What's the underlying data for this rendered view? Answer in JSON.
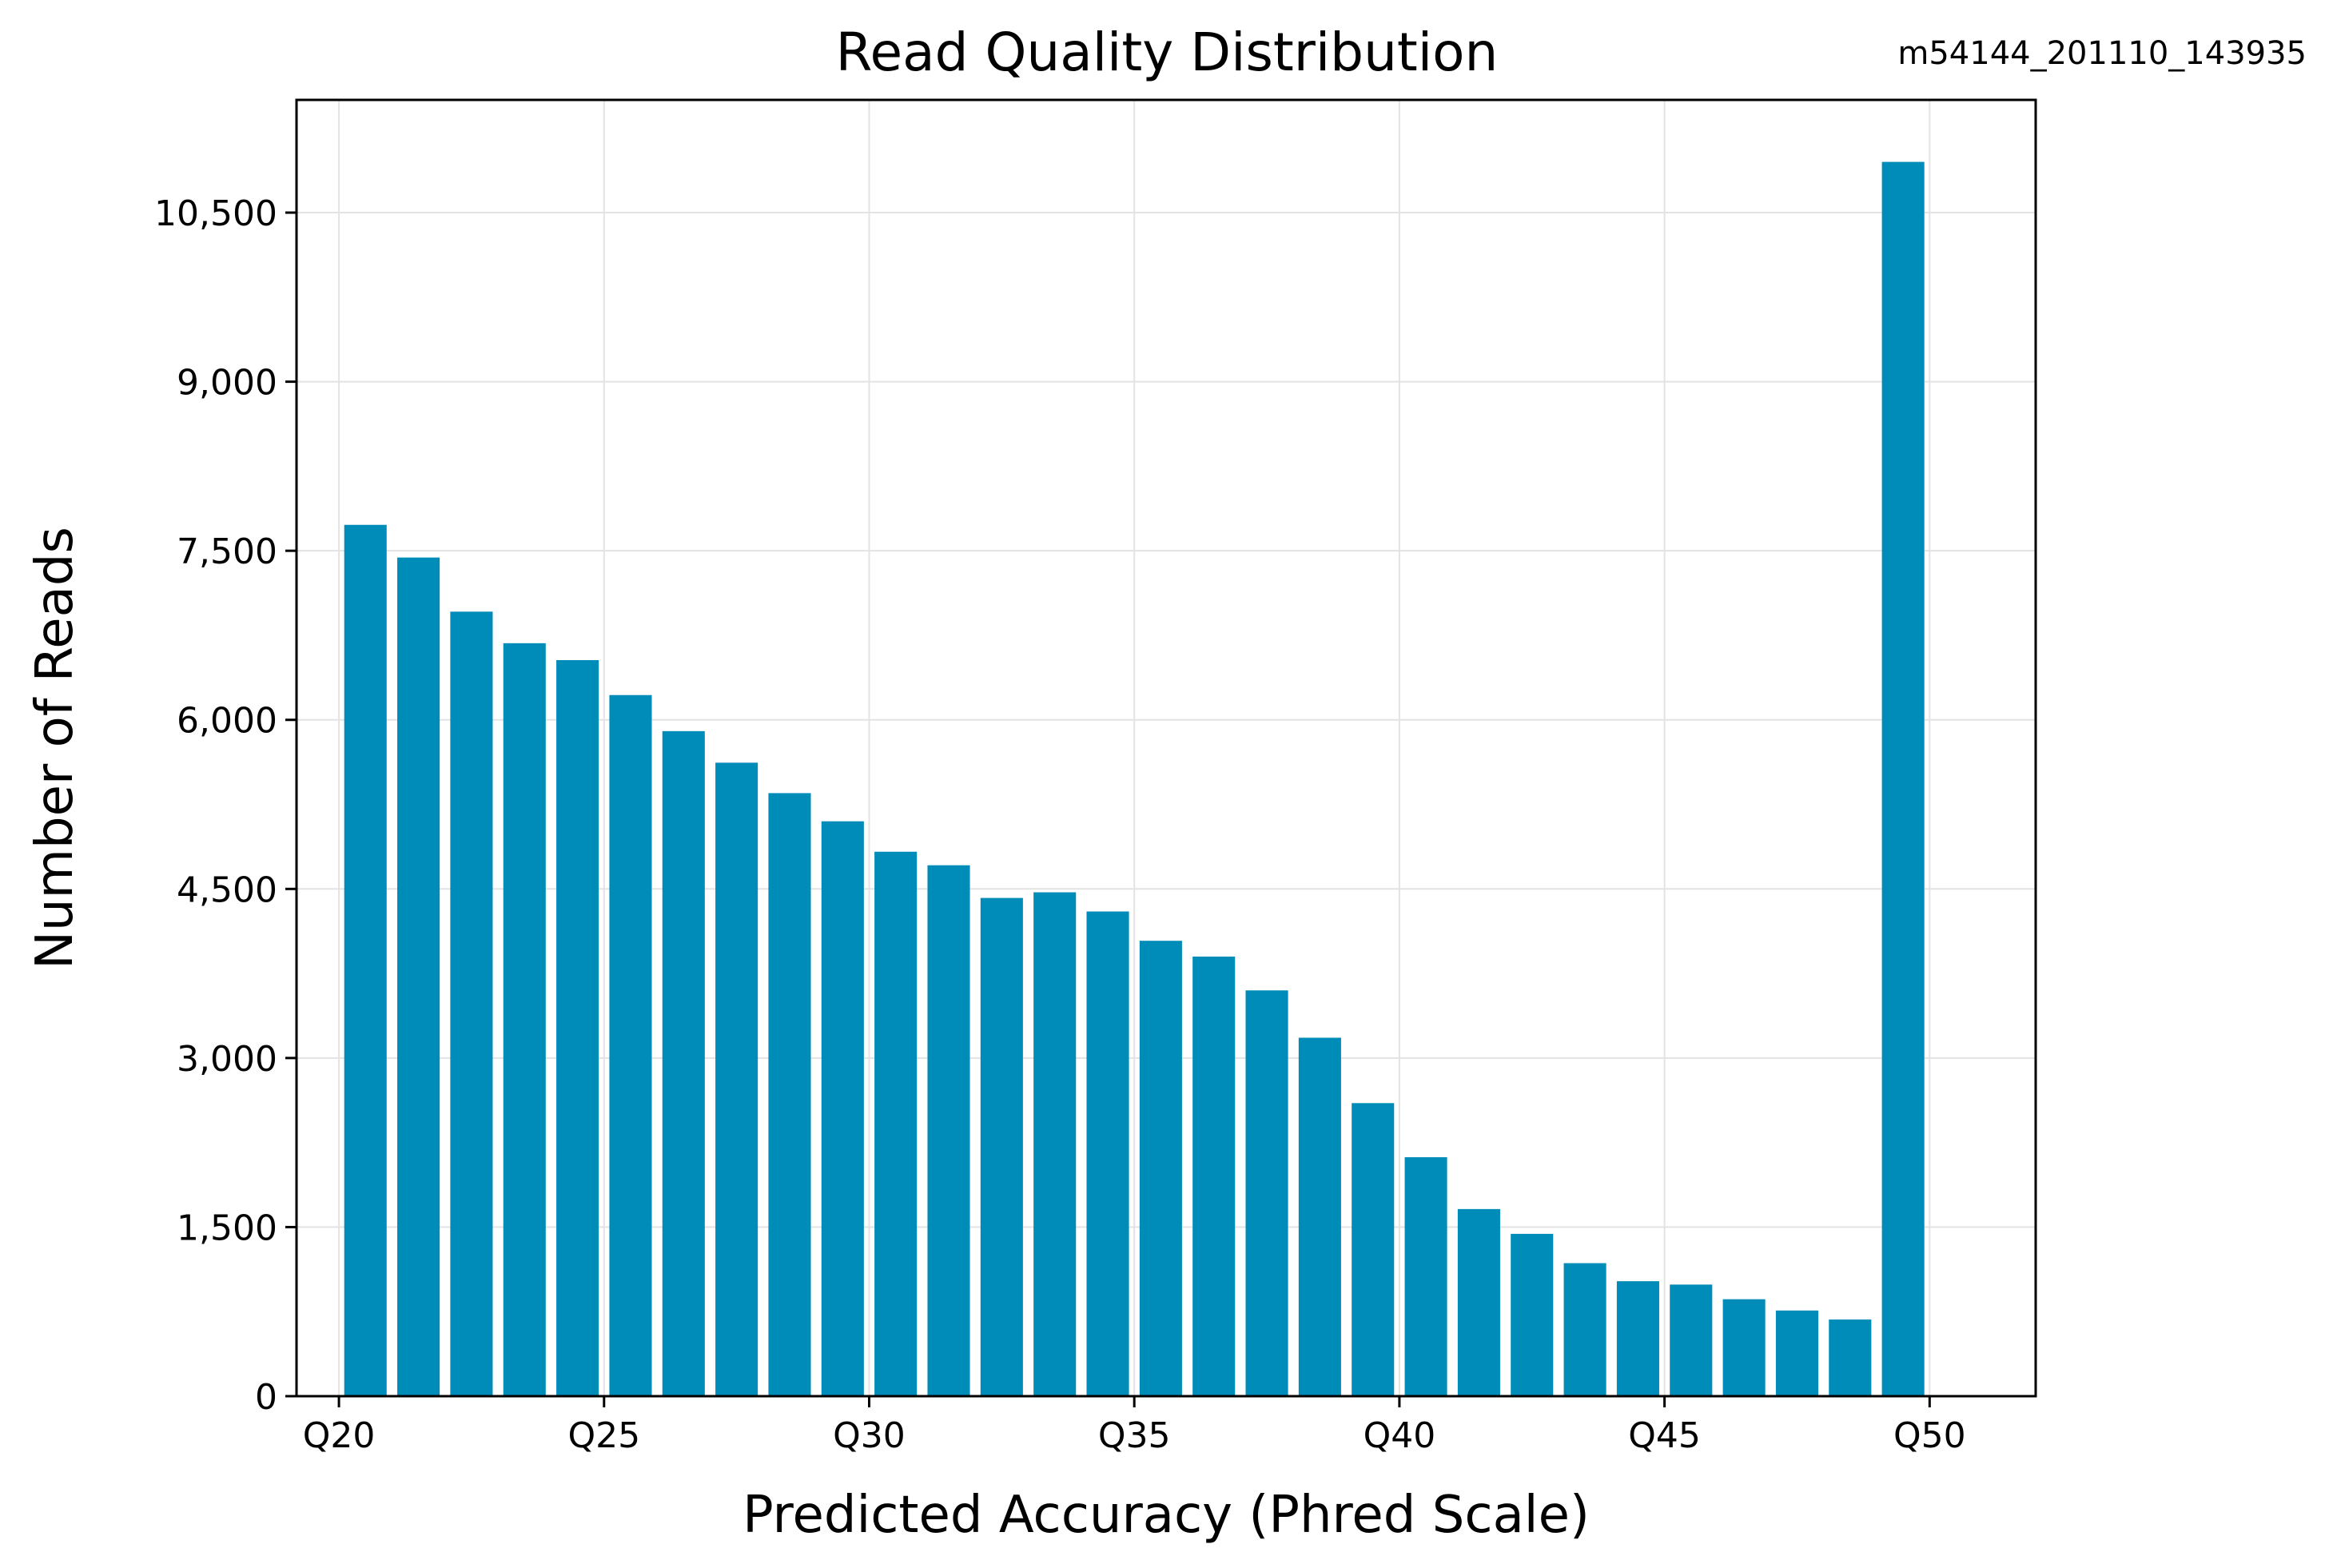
{
  "chart_data": {
    "type": "bar",
    "title": "Read Quality Distribution",
    "subtitle": "m54144_201110_143935",
    "xlabel": "Predicted Accuracy (Phred Scale)",
    "ylabel": "Number of Reads",
    "bar_color": "#008cb8",
    "grid": true,
    "xlim": [
      19.2,
      52.0
    ],
    "ylim": [
      0,
      11500
    ],
    "x_ticks": [
      {
        "value": 20,
        "label": "Q20"
      },
      {
        "value": 25,
        "label": "Q25"
      },
      {
        "value": 30,
        "label": "Q30"
      },
      {
        "value": 35,
        "label": "Q35"
      },
      {
        "value": 40,
        "label": "Q40"
      },
      {
        "value": 45,
        "label": "Q45"
      },
      {
        "value": 50,
        "label": "Q50"
      }
    ],
    "y_ticks": [
      {
        "value": 0,
        "label": "0"
      },
      {
        "value": 1500,
        "label": "1,500"
      },
      {
        "value": 3000,
        "label": "3,000"
      },
      {
        "value": 4500,
        "label": "4,500"
      },
      {
        "value": 6000,
        "label": "6,000"
      },
      {
        "value": 7500,
        "label": "7,500"
      },
      {
        "value": 9000,
        "label": "9,000"
      },
      {
        "value": 10500,
        "label": "10,500"
      }
    ],
    "bar_width": 0.8,
    "x": [
      20.5,
      21.5,
      22.5,
      23.5,
      24.5,
      25.5,
      26.5,
      27.5,
      28.5,
      29.5,
      30.5,
      31.5,
      32.5,
      33.5,
      34.5,
      35.5,
      36.5,
      37.5,
      38.5,
      39.5,
      40.5,
      41.5,
      42.5,
      43.5,
      44.5,
      45.5,
      46.5,
      47.5,
      48.5,
      49.5
    ],
    "values": [
      7730,
      7440,
      6960,
      6680,
      6530,
      6220,
      5900,
      5620,
      5350,
      5100,
      4830,
      4710,
      4420,
      4470,
      4300,
      4040,
      3900,
      3600,
      3180,
      2600,
      2120,
      1660,
      1440,
      1180,
      1020,
      990,
      860,
      760,
      680,
      10950
    ]
  }
}
